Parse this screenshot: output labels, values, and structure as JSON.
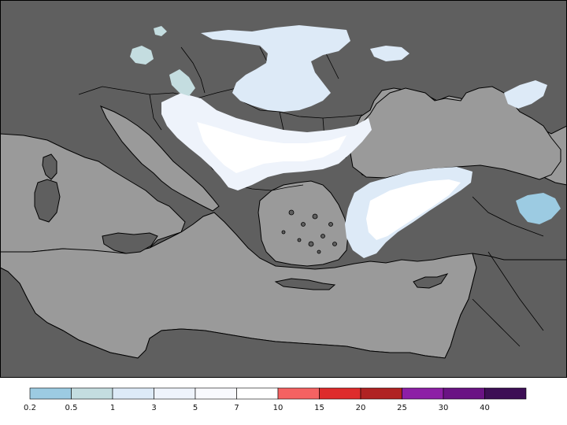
{
  "map": {
    "colors": {
      "sea": "#9a9a9a",
      "land": "#5f5f5f",
      "coast": "#000000",
      "border": "#000000"
    }
  },
  "legend": {
    "bins": [
      {
        "from": "0.2",
        "to": "0.5",
        "color": "#9ccbe2"
      },
      {
        "from": "0.5",
        "to": "1",
        "color": "#c4dde0"
      },
      {
        "from": "1",
        "to": "3",
        "color": "#ddeaf7"
      },
      {
        "from": "3",
        "to": "5",
        "color": "#eef3fb"
      },
      {
        "from": "5",
        "to": "7",
        "color": "#f8f9fd"
      },
      {
        "from": "7",
        "to": "10",
        "color": "#ffffff"
      },
      {
        "from": "10",
        "to": "15",
        "color": "#f46262"
      },
      {
        "from": "15",
        "to": "20",
        "color": "#de2c2c"
      },
      {
        "from": "20",
        "to": "25",
        "color": "#b02222"
      },
      {
        "from": "25",
        "to": "30",
        "color": "#8d1fa6"
      },
      {
        "from": "30",
        "to": "40",
        "color": "#6a1384"
      },
      {
        "from": "40",
        "to": "",
        "color": "#3d0f55"
      }
    ],
    "tick_labels": [
      "0.2",
      "0.5",
      "1",
      "3",
      "5",
      "7",
      "10",
      "15",
      "20",
      "25",
      "30",
      "40"
    ]
  }
}
